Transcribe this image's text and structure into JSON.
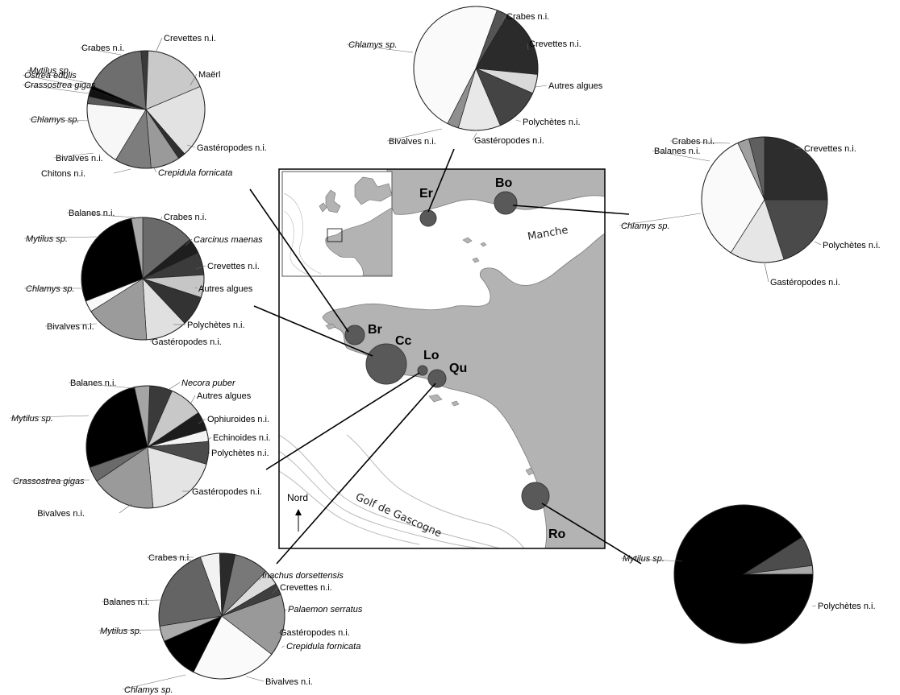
{
  "map": {
    "sea_label": "Manche",
    "gulf_label": "Golf de Gascogne",
    "north_label": "Nord",
    "sites": [
      {
        "code": "Er"
      },
      {
        "code": "Bo"
      },
      {
        "code": "Br"
      },
      {
        "code": "Cc"
      },
      {
        "code": "Lo"
      },
      {
        "code": "Qu"
      },
      {
        "code": "Ro"
      }
    ]
  },
  "chart_data": [
    {
      "type": "pie",
      "site": "Br",
      "slices": [
        {
          "label": "Crevettes n.i.",
          "value": 2,
          "color": "#3a3a3a",
          "italic": false
        },
        {
          "label": "Maërl",
          "value": 18,
          "color": "#c9c9c9",
          "italic": false
        },
        {
          "label": "Gastéropodes n.i.",
          "value": 20,
          "color": "#e2e2e2",
          "italic": false
        },
        {
          "label": "Crepidula fornicata",
          "value": 2,
          "color": "#2f2f2f",
          "italic": true
        },
        {
          "label": "Chitons n.i.",
          "value": 8,
          "color": "#9a9a9a",
          "italic": false
        },
        {
          "label": "Bivalves n.i.",
          "value": 10,
          "color": "#7d7d7d",
          "italic": false
        },
        {
          "label": "Chlamys sp.",
          "value": 18,
          "color": "#f7f7f7",
          "italic": true
        },
        {
          "label": "Crassostrea gigas",
          "value": 2,
          "color": "#5a5a5a",
          "italic": true
        },
        {
          "label": "Ostrea edulis",
          "value": 2,
          "color": "#111111",
          "italic": true
        },
        {
          "label": "Mytilus sp.",
          "value": 1,
          "color": "#000000",
          "italic": true
        },
        {
          "label": "Crabes n.i.",
          "value": 17,
          "color": "#6e6e6e",
          "italic": false
        }
      ]
    },
    {
      "type": "pie",
      "site": "Er",
      "slices": [
        {
          "label": "Crabes n.i.",
          "value": 3,
          "color": "#555555",
          "italic": false
        },
        {
          "label": "Crevettes n.i.",
          "value": 18,
          "color": "#2b2b2b",
          "italic": false
        },
        {
          "label": "Autres algues",
          "value": 5,
          "color": "#d9d9d9",
          "italic": false
        },
        {
          "label": "Polychètes n.i.",
          "value": 12,
          "color": "#444444",
          "italic": false
        },
        {
          "label": "Gastéropodes n.i.",
          "value": 11,
          "color": "#e8e8e8",
          "italic": false
        },
        {
          "label": "Bivalves n.i.",
          "value": 3,
          "color": "#8f8f8f",
          "italic": false
        },
        {
          "label": "Chlamys sp.",
          "value": 48,
          "color": "#fafafa",
          "italic": true
        }
      ]
    },
    {
      "type": "pie",
      "site": "Bo",
      "slices": [
        {
          "label": "Crevettes n.i.",
          "value": 25,
          "color": "#2d2d2d",
          "italic": false
        },
        {
          "label": "Polychètes n.i.",
          "value": 20,
          "color": "#4a4a4a",
          "italic": false
        },
        {
          "label": "Gastéropodes n.i.",
          "value": 14,
          "color": "#e6e6e6",
          "italic": false
        },
        {
          "label": "Chlamys sp.",
          "value": 34,
          "color": "#fafafa",
          "italic": true
        },
        {
          "label": "Balanes n.i.",
          "value": 3,
          "color": "#9f9f9f",
          "italic": false
        },
        {
          "label": "Crabes n.i.",
          "value": 4,
          "color": "#5f5f5f",
          "italic": false
        }
      ]
    },
    {
      "type": "pie",
      "site": "Cc",
      "slices": [
        {
          "label": "Crabes n.i.",
          "value": 14,
          "color": "#6a6a6a",
          "italic": false
        },
        {
          "label": "Carcinus maenas",
          "value": 4,
          "color": "#1e1e1e",
          "italic": true
        },
        {
          "label": "Crevettes n.i.",
          "value": 6,
          "color": "#3b3b3b",
          "italic": false
        },
        {
          "label": "Autres algues",
          "value": 6,
          "color": "#c6c6c6",
          "italic": false
        },
        {
          "label": "Polychètes n.i.",
          "value": 8,
          "color": "#333333",
          "italic": false
        },
        {
          "label": "Gastéropodes n.i.",
          "value": 11,
          "color": "#e0e0e0",
          "italic": false
        },
        {
          "label": "Bivalves n.i.",
          "value": 17,
          "color": "#9b9b9b",
          "italic": false
        },
        {
          "label": "Chlamys sp.",
          "value": 3,
          "color": "#f8f8f8",
          "italic": true
        },
        {
          "label": "Mytilus sp.",
          "value": 28,
          "color": "#000000",
          "italic": true
        },
        {
          "label": "Balanes n.i.",
          "value": 3,
          "color": "#a8a8a8",
          "italic": false
        }
      ]
    },
    {
      "type": "pie",
      "site": "Lo",
      "slices": [
        {
          "label": "Necora puber",
          "value": 6,
          "color": "#3a3a3a",
          "italic": true
        },
        {
          "label": "Autres algues",
          "value": 9,
          "color": "#c8c8c8",
          "italic": false
        },
        {
          "label": "Ophiuroides n.i.",
          "value": 5,
          "color": "#1c1c1c",
          "italic": false
        },
        {
          "label": "Echinoides n.i.",
          "value": 3,
          "color": "#f3f3f3",
          "italic": false
        },
        {
          "label": "Polychètes n.i.",
          "value": 6,
          "color": "#4b4b4b",
          "italic": false
        },
        {
          "label": "Gastéropodes n.i.",
          "value": 19,
          "color": "#e4e4e4",
          "italic": false
        },
        {
          "label": "Bivalves n.i.",
          "value": 17,
          "color": "#9a9a9a",
          "italic": false
        },
        {
          "label": "Crassostrea gigas",
          "value": 4,
          "color": "#6a6a6a",
          "italic": true
        },
        {
          "label": "Mytilus sp.",
          "value": 27,
          "color": "#000000",
          "italic": true
        },
        {
          "label": "Balanes n.i.",
          "value": 4,
          "color": "#a5a5a5",
          "italic": false
        }
      ]
    },
    {
      "type": "pie",
      "site": "Qu",
      "slices": [
        {
          "label": "Inachus dorsettensis",
          "value": 5,
          "color": "#f2f2f2",
          "italic": true
        },
        {
          "label": "Crevettes n.i.",
          "value": 4,
          "color": "#2a2a2a",
          "italic": false
        },
        {
          "label": "Palaemon serratus",
          "value": 9,
          "color": "#787878",
          "italic": true
        },
        {
          "label": "Gastéropodes n.i.",
          "value": 4,
          "color": "#dcdcdc",
          "italic": false
        },
        {
          "label": "Crepidula fornicata",
          "value": 3,
          "color": "#3f3f3f",
          "italic": true
        },
        {
          "label": "Bivalves n.i.",
          "value": 16,
          "color": "#999999",
          "italic": false
        },
        {
          "label": "Chlamys sp.",
          "value": 22,
          "color": "#fafafa",
          "italic": true
        },
        {
          "label": "Mytilus sp.",
          "value": 11,
          "color": "#000000",
          "italic": true
        },
        {
          "label": "Balanes n.i.",
          "value": 4,
          "color": "#ababab",
          "italic": false
        },
        {
          "label": "Crabes n.i.",
          "value": 22,
          "color": "#646464",
          "italic": false
        }
      ]
    },
    {
      "type": "pie",
      "site": "Ro",
      "slices": [
        {
          "label": "Mytilus sp.",
          "value": 91,
          "color": "#000000",
          "italic": true
        },
        {
          "label": "Polychètes n.i.",
          "value": 7,
          "color": "#4c4c4c",
          "italic": false
        },
        {
          "label": "",
          "value": 2,
          "color": "#a9a9a9",
          "italic": false
        }
      ]
    }
  ]
}
